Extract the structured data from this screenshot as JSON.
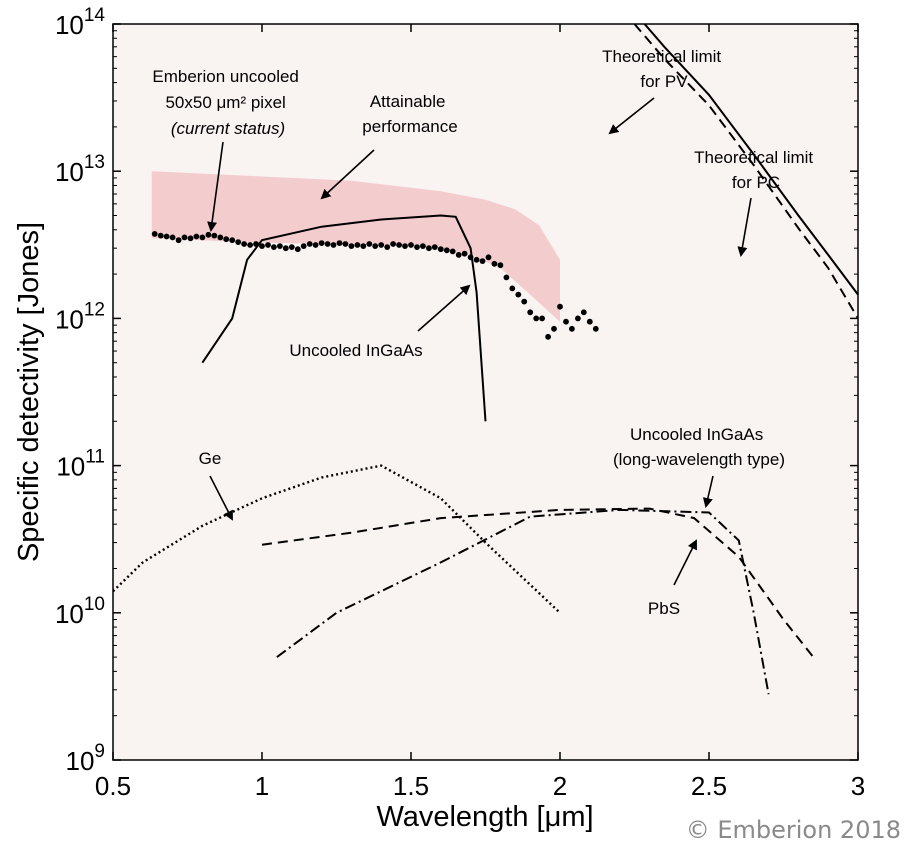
{
  "chart_data": {
    "type": "line",
    "xlabel": "Wavelength [μm]",
    "ylabel": "Specific detectivity [Jones]",
    "xlim": [
      0.5,
      3
    ],
    "ylim": [
      1000000000.0,
      100000000000000.0
    ],
    "yscale": "log",
    "grid": false,
    "x_ticks": [
      "0.5",
      "1",
      "1.5",
      "2",
      "2.5",
      "3"
    ],
    "y_tick_exponents": [
      "9",
      "10",
      "11",
      "12",
      "13",
      "14"
    ],
    "y_tick_base": "10",
    "colors": {
      "plot_bg": "#f9f3f2",
      "band": "#f2c4c8",
      "line": "#000000"
    },
    "band": {
      "label": "Attainable performance",
      "upper": [
        [
          0.63,
          10000000000000.0
        ],
        [
          1.3,
          8600000000000.0
        ],
        [
          1.6,
          7300000000000.0
        ],
        [
          1.75,
          6400000000000.0
        ],
        [
          1.85,
          5500000000000.0
        ],
        [
          1.93,
          4300000000000.0
        ],
        [
          2.0,
          2500000000000.0
        ]
      ],
      "lower": [
        [
          2.0,
          950000000000.0
        ],
        [
          1.9,
          1450000000000.0
        ],
        [
          1.8,
          2200000000000.0
        ],
        [
          1.7,
          2700000000000.0
        ],
        [
          1.5,
          3100000000000.0
        ],
        [
          1.2,
          3200000000000.0
        ],
        [
          0.95,
          3300000000000.0
        ],
        [
          0.63,
          3500000000000.0
        ]
      ]
    },
    "series": [
      {
        "style": "dots",
        "points": [
          [
            0.64,
            3750000000000.0
          ],
          [
            0.66,
            3650000000000.0
          ],
          [
            0.68,
            3600000000000.0
          ],
          [
            0.7,
            3550000000000.0
          ],
          [
            0.72,
            3400000000000.0
          ],
          [
            0.74,
            3550000000000.0
          ],
          [
            0.76,
            3500000000000.0
          ],
          [
            0.78,
            3600000000000.0
          ],
          [
            0.8,
            3550000000000.0
          ],
          [
            0.82,
            3700000000000.0
          ],
          [
            0.84,
            3650000000000.0
          ],
          [
            0.86,
            3550000000000.0
          ],
          [
            0.88,
            3450000000000.0
          ],
          [
            0.9,
            3400000000000.0
          ],
          [
            0.92,
            3300000000000.0
          ],
          [
            0.94,
            3200000000000.0
          ],
          [
            0.96,
            3150000000000.0
          ],
          [
            0.98,
            3200000000000.0
          ],
          [
            1.0,
            3100000000000.0
          ],
          [
            1.02,
            3150000000000.0
          ],
          [
            1.04,
            3050000000000.0
          ],
          [
            1.06,
            3100000000000.0
          ],
          [
            1.08,
            3000000000000.0
          ],
          [
            1.1,
            3050000000000.0
          ],
          [
            1.12,
            2950000000000.0
          ],
          [
            1.14,
            3100000000000.0
          ],
          [
            1.16,
            3200000000000.0
          ],
          [
            1.18,
            3150000000000.0
          ],
          [
            1.2,
            3250000000000.0
          ],
          [
            1.22,
            3200000000000.0
          ],
          [
            1.24,
            3150000000000.0
          ],
          [
            1.26,
            3250000000000.0
          ],
          [
            1.28,
            3200000000000.0
          ],
          [
            1.3,
            3100000000000.0
          ],
          [
            1.32,
            3150000000000.0
          ],
          [
            1.34,
            3100000000000.0
          ],
          [
            1.36,
            3200000000000.0
          ],
          [
            1.38,
            3100000000000.0
          ],
          [
            1.4,
            3150000000000.0
          ],
          [
            1.42,
            3050000000000.0
          ],
          [
            1.44,
            3200000000000.0
          ],
          [
            1.46,
            3150000000000.0
          ],
          [
            1.48,
            3100000000000.0
          ],
          [
            1.5,
            3150000000000.0
          ],
          [
            1.52,
            3050000000000.0
          ],
          [
            1.54,
            3100000000000.0
          ],
          [
            1.56,
            3000000000000.0
          ],
          [
            1.58,
            3050000000000.0
          ],
          [
            1.6,
            2950000000000.0
          ],
          [
            1.62,
            2900000000000.0
          ],
          [
            1.64,
            2850000000000.0
          ],
          [
            1.66,
            2700000000000.0
          ],
          [
            1.68,
            2750000000000.0
          ],
          [
            1.7,
            2600000000000.0
          ],
          [
            1.72,
            2500000000000.0
          ],
          [
            1.74,
            2450000000000.0
          ],
          [
            1.76,
            2600000000000.0
          ],
          [
            1.78,
            2350000000000.0
          ],
          [
            1.8,
            2300000000000.0
          ],
          [
            1.82,
            1900000000000.0
          ],
          [
            1.84,
            1600000000000.0
          ],
          [
            1.86,
            1450000000000.0
          ],
          [
            1.88,
            1300000000000.0
          ],
          [
            1.9,
            1100000000000.0
          ],
          [
            1.92,
            1000000000000.0
          ],
          [
            1.94,
            1000000000000.0
          ],
          [
            1.96,
            750000000000.0
          ],
          [
            1.98,
            850000000000.0
          ],
          [
            2.0,
            1200000000000.0
          ],
          [
            2.02,
            950000000000.0
          ],
          [
            2.04,
            850000000000.0
          ],
          [
            2.06,
            1000000000000.0
          ],
          [
            2.08,
            1100000000000.0
          ],
          [
            2.1,
            950000000000.0
          ],
          [
            2.12,
            850000000000.0
          ]
        ]
      },
      {
        "style": "solid",
        "points": [
          [
            0.8,
            500000000000.0
          ],
          [
            0.9,
            1000000000000.0
          ],
          [
            0.95,
            2500000000000.0
          ],
          [
            1.0,
            3400000000000.0
          ],
          [
            1.2,
            4200000000000.0
          ],
          [
            1.4,
            4700000000000.0
          ],
          [
            1.6,
            5000000000000.0
          ],
          [
            1.65,
            4900000000000.0
          ],
          [
            1.7,
            3000000000000.0
          ],
          [
            1.72,
            1500000000000.0
          ],
          [
            1.75,
            200000000000.0
          ]
        ]
      },
      {
        "style": "solid",
        "points": [
          [
            2.25,
            120000000000000.0
          ],
          [
            2.35,
            70000000000000.0
          ],
          [
            2.5,
            33000000000000.0
          ],
          [
            2.65,
            13000000000000.0
          ],
          [
            2.8,
            5000000000000.0
          ],
          [
            2.9,
            2700000000000.0
          ],
          [
            3.0,
            1450000000000.0
          ]
        ]
      },
      {
        "style": "dashed",
        "points": [
          [
            2.25,
            100000000000000.0
          ],
          [
            2.35,
            58000000000000.0
          ],
          [
            2.5,
            28000000000000.0
          ],
          [
            2.65,
            11000000000000.0
          ],
          [
            2.8,
            4100000000000.0
          ],
          [
            2.9,
            2200000000000.0
          ],
          [
            3.0,
            1000000000000.0
          ]
        ]
      },
      {
        "style": "dotted",
        "points": [
          [
            0.5,
            14000000000.0
          ],
          [
            0.6,
            22000000000.0
          ],
          [
            0.8,
            39000000000.0
          ],
          [
            1.0,
            60000000000.0
          ],
          [
            1.2,
            83000000000.0
          ],
          [
            1.4,
            100000000000.0
          ],
          [
            1.6,
            60000000000.0
          ],
          [
            1.75,
            30000000000.0
          ],
          [
            2.0,
            10000000000.0
          ]
        ]
      },
      {
        "style": "dashed",
        "points": [
          [
            1.0,
            29000000000.0
          ],
          [
            1.3,
            35000000000.0
          ],
          [
            1.6,
            44000000000.0
          ],
          [
            2.0,
            50000000000.0
          ],
          [
            2.3,
            51000000000.0
          ],
          [
            2.45,
            44000000000.0
          ],
          [
            2.6,
            24000000000.0
          ],
          [
            2.75,
            9000000000.0
          ],
          [
            2.85,
            5000000000.0
          ]
        ]
      },
      {
        "style": "dashdot",
        "points": [
          [
            1.05,
            5000000000.0
          ],
          [
            1.25,
            10000000000.0
          ],
          [
            1.6,
            22000000000.0
          ],
          [
            1.9,
            45000000000.0
          ],
          [
            2.2,
            50000000000.0
          ],
          [
            2.5,
            48000000000.0
          ],
          [
            2.6,
            31000000000.0
          ],
          [
            2.65,
            10000000000.0
          ],
          [
            2.7,
            2800000000.0
          ]
        ]
      }
    ],
    "annotations": [
      {
        "lines": [
          "Emberion uncooled",
          "50x50  μm² pixel",
          "(current status)"
        ]
      },
      {
        "lines": [
          "Attainable",
          "performance"
        ]
      },
      {
        "lines": [
          "Theoretical limit",
          "for PV"
        ]
      },
      {
        "lines": [
          "Theoretical limit",
          "for PC"
        ]
      },
      {
        "lines": [
          "Uncooled InGaAs"
        ]
      },
      {
        "lines": [
          "Ge"
        ]
      },
      {
        "lines": [
          "Uncooled InGaAs",
          "(long-wavelength type)"
        ]
      },
      {
        "lines": [
          "PbS"
        ]
      }
    ]
  },
  "footer": {
    "copyright": "© Emberion 2018"
  }
}
